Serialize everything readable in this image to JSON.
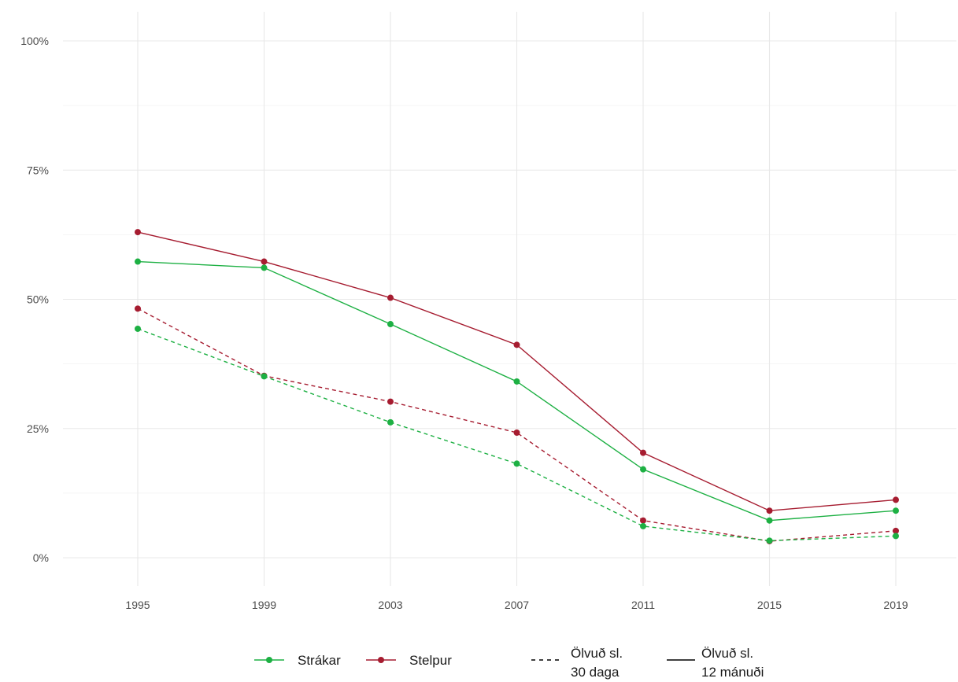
{
  "chart_data": {
    "type": "line",
    "x": [
      "1995",
      "1999",
      "2003",
      "2007",
      "2011",
      "2015",
      "2019"
    ],
    "y_ticks": [
      "0%",
      "25%",
      "50%",
      "75%",
      "100%"
    ],
    "ylim": [
      0,
      100
    ],
    "grid": true,
    "legend_position": "bottom",
    "colors": {
      "Strákar": "#1db043",
      "Stelpur": "#a61c30"
    },
    "legend": {
      "groups": [
        "Strákar",
        "Stelpur"
      ],
      "line_types": [
        {
          "key": "30",
          "label_line1": "Ölvuð sl.",
          "label_line2": "30 daga",
          "dash": "dashed"
        },
        {
          "key": "12",
          "label_line1": "Ölvuð sl.",
          "label_line2": "12 mánuði",
          "dash": "solid"
        }
      ]
    },
    "series": [
      {
        "group": "Stelpur",
        "measure": "12",
        "values": [
          63,
          57.3,
          50.3,
          41.2,
          20.3,
          9.1,
          11.2
        ]
      },
      {
        "group": "Strákar",
        "measure": "12",
        "values": [
          57.3,
          56.1,
          45.2,
          34.1,
          17.1,
          7.2,
          9.1
        ]
      },
      {
        "group": "Stelpur",
        "measure": "30",
        "values": [
          48.2,
          35.2,
          30.2,
          24.2,
          7.2,
          3.2,
          5.2
        ]
      },
      {
        "group": "Strákar",
        "measure": "30",
        "values": [
          44.3,
          35.1,
          26.2,
          18.2,
          6.1,
          3.3,
          4.2
        ]
      }
    ]
  }
}
